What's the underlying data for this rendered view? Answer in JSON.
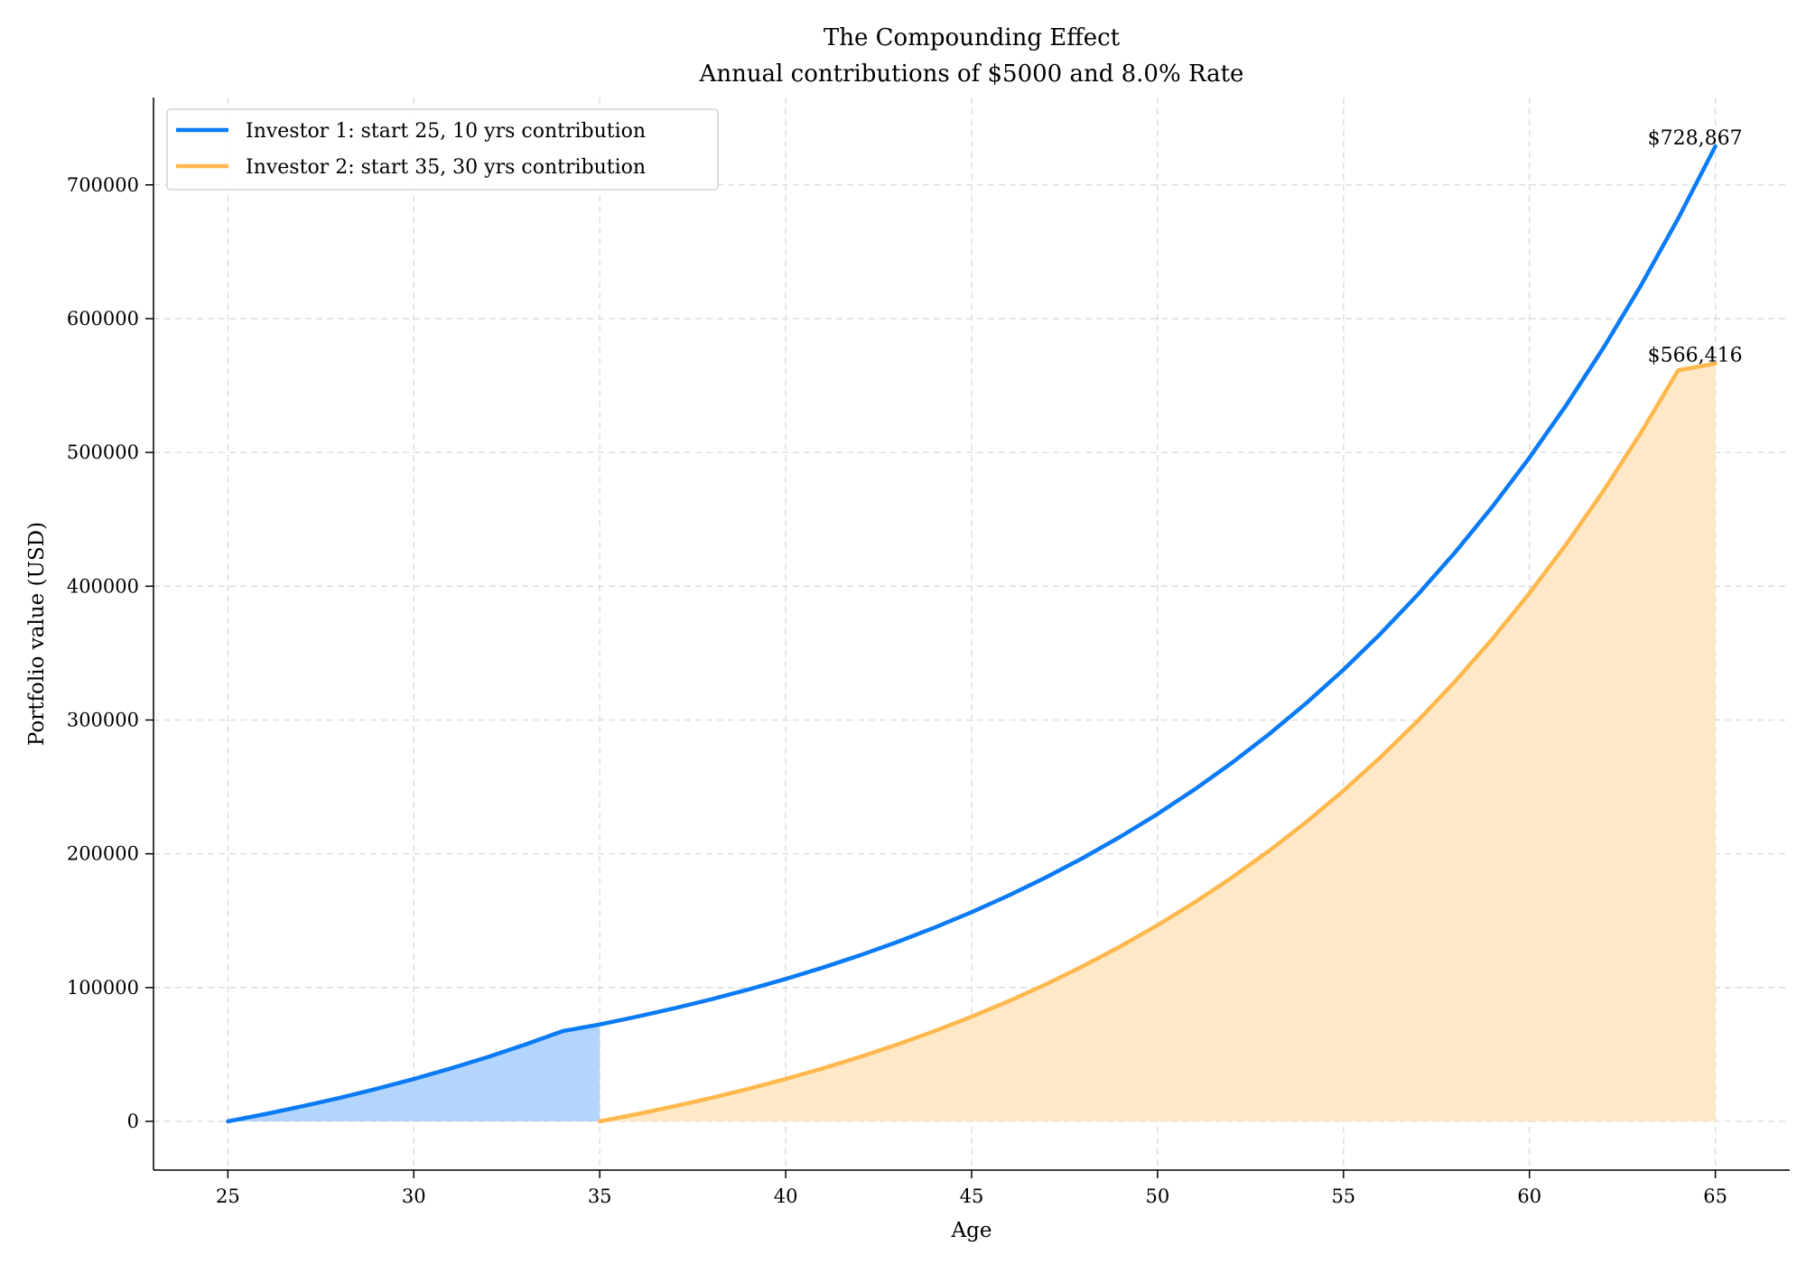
{
  "chart_data": {
    "type": "line",
    "title": "The Compounding Effect",
    "subtitle": "Annual contributions of $5000 and 8.0% Rate",
    "xlabel": "Age",
    "ylabel": "Portfolio value (USD)",
    "xlim": [
      23,
      67
    ],
    "ylim": [
      -36443,
      765311
    ],
    "xticks": [
      25,
      30,
      35,
      40,
      45,
      50,
      55,
      60,
      65
    ],
    "yticks": [
      0,
      100000,
      200000,
      300000,
      400000,
      500000,
      600000,
      700000
    ],
    "grid": true,
    "legend_position": "top-left",
    "series": [
      {
        "name": "Investor 1: start 25, 10 yrs contribution",
        "color": "#0a7bf5",
        "fill_color": "#b3d4fb",
        "fill_range": [
          25,
          35
        ],
        "x": [
          25,
          26,
          27,
          28,
          29,
          30,
          31,
          32,
          33,
          34,
          35,
          36,
          37,
          38,
          39,
          40,
          41,
          42,
          43,
          44,
          45,
          46,
          47,
          48,
          49,
          50,
          51,
          52,
          53,
          54,
          55,
          56,
          57,
          58,
          59,
          60,
          61,
          62,
          63,
          64,
          65
        ],
        "y": [
          0,
          5400,
          11232,
          17531,
          24333,
          31680,
          39614,
          48183,
          57438,
          67433,
          72433,
          78228,
          84486,
          91245,
          98545,
          106429,
          114943,
          124139,
          134070,
          144796,
          156380,
          168890,
          182401,
          196993,
          212753,
          229773,
          248155,
          268008,
          289448,
          312604,
          337612,
          364621,
          393791,
          425294,
          459318,
          496063,
          535748,
          578608,
          624897,
          674888,
          728867
        ]
      },
      {
        "name": "Investor 2: start 35, 30 yrs contribution",
        "color": "#ffb84d",
        "fill_color": "#ffe8c7",
        "fill_range": [
          35,
          65
        ],
        "x": [
          35,
          36,
          37,
          38,
          39,
          40,
          41,
          42,
          43,
          44,
          45,
          46,
          47,
          48,
          49,
          50,
          51,
          52,
          53,
          54,
          55,
          56,
          57,
          58,
          59,
          60,
          61,
          62,
          63,
          64,
          65
        ],
        "y": [
          0,
          5400,
          11232,
          17531,
          24333,
          31680,
          39614,
          48183,
          57438,
          67433,
          78227,
          89885,
          102476,
          116074,
          130760,
          146621,
          163751,
          182251,
          202231,
          223810,
          247115,
          272284,
          299467,
          328824,
          360530,
          394772,
          431754,
          471694,
          514830,
          561416,
          566416
        ]
      }
    ],
    "annotations": [
      {
        "text": "$728,867",
        "x": 65,
        "y": 728867
      },
      {
        "text": "$566,416",
        "x": 65,
        "y": 566416
      }
    ]
  }
}
